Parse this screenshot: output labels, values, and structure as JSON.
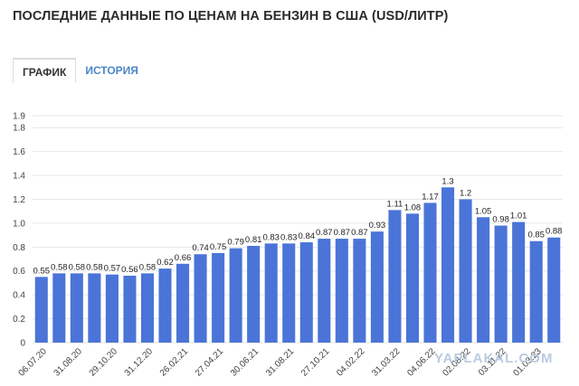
{
  "page": {
    "title": "ПОСЛЕДНИЕ ДАННЫЕ ПО ЦЕНАМ НА БЕНЗИН В США (USD/ЛИТР)",
    "tabs": [
      {
        "label": "ГРАФИК",
        "active": true
      },
      {
        "label": "ИСТОРИЯ",
        "active": false
      }
    ],
    "watermark": "YAPLAKAL.COM"
  },
  "colors": {
    "bar": "#4a74d8",
    "grid": "#e6e6e6",
    "tab_link": "#4a86c6"
  },
  "chart_data": {
    "type": "bar",
    "ylim": [
      0,
      1.9
    ],
    "y_ticks": [
      0,
      0.2,
      0.4,
      0.6,
      0.8,
      1.0,
      1.2,
      1.4,
      1.6,
      1.8,
      1.9
    ],
    "y_tick_labels": [
      "0",
      "0.2",
      "0.4",
      "0.6",
      "0.8",
      "1.0",
      "1.2",
      "1.4",
      "1.6",
      "1.8",
      "1.9"
    ],
    "grid": true,
    "values": [
      0.55,
      0.58,
      0.58,
      0.58,
      0.57,
      0.56,
      0.58,
      0.62,
      0.66,
      0.74,
      0.75,
      0.79,
      0.81,
      0.83,
      0.83,
      0.84,
      0.87,
      0.87,
      0.87,
      0.93,
      1.11,
      1.08,
      1.17,
      1.3,
      1.2,
      1.05,
      0.98,
      1.01,
      0.85,
      0.88
    ],
    "data_labels": [
      "0.55",
      "0.58",
      "0.58",
      "0.58",
      "0.57",
      "0.56",
      "0.58",
      "0.62",
      "0.66",
      "0.74",
      "0.75",
      "0.79",
      "0.81",
      "0.83",
      "0.83",
      "0.84",
      "0.87",
      "0.87",
      "0.87",
      "0.93",
      "1.11",
      "1.08",
      "1.17",
      "1.3",
      "1.2",
      "1.05",
      "0.98",
      "1.01",
      "0.85",
      "0.88"
    ],
    "x_tick_labels": [
      {
        "index": 0,
        "label": "06.07.20"
      },
      {
        "index": 2,
        "label": "31.08.20"
      },
      {
        "index": 4,
        "label": "29.10.20"
      },
      {
        "index": 6,
        "label": "31.12.20"
      },
      {
        "index": 8,
        "label": "26.02.21"
      },
      {
        "index": 10,
        "label": "27.04.21"
      },
      {
        "index": 12,
        "label": "30.06.21"
      },
      {
        "index": 14,
        "label": "31.08.21"
      },
      {
        "index": 16,
        "label": "27.10.21"
      },
      {
        "index": 18,
        "label": "04.02.22"
      },
      {
        "index": 20,
        "label": "31.03.22"
      },
      {
        "index": 22,
        "label": "04.06.22"
      },
      {
        "index": 24,
        "label": "02.08.22"
      },
      {
        "index": 26,
        "label": "03.11.22"
      },
      {
        "index": 28,
        "label": "01.03.23"
      }
    ]
  }
}
